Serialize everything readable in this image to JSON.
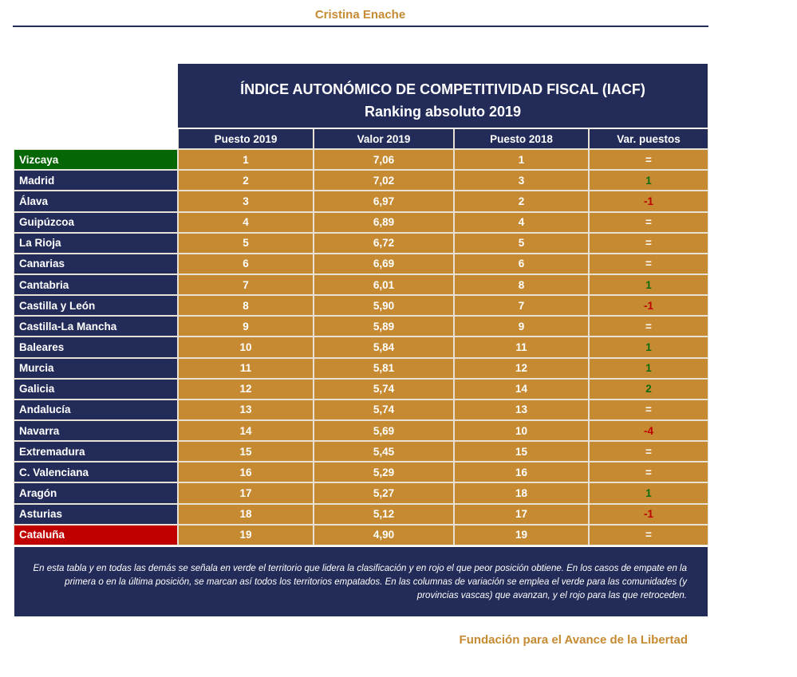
{
  "author": "Cristina Enache",
  "title": "ÍNDICE AUTONÓMICO DE COMPETITIVIDAD FISCAL (IACF)",
  "subtitle": "Ranking absoluto 2019",
  "columns": [
    "Puesto 2019",
    "Valor 2019",
    "Puesto 2018",
    "Var. puestos"
  ],
  "colors": {
    "leader": "#046604",
    "last": "#c00000",
    "navy": "#232c58",
    "gold": "#c68a32"
  },
  "rows": [
    [
      "Vizcaya",
      "1",
      "7,06",
      "1",
      "="
    ],
    [
      "Madrid",
      "2",
      "7,02",
      "3",
      "1"
    ],
    [
      "Álava",
      "3",
      "6,97",
      "2",
      "-1"
    ],
    [
      "Guipúzcoa",
      "4",
      "6,89",
      "4",
      "="
    ],
    [
      "La Rioja",
      "5",
      "6,72",
      "5",
      "="
    ],
    [
      "Canarias",
      "6",
      "6,69",
      "6",
      "="
    ],
    [
      "Cantabria",
      "7",
      "6,01",
      "8",
      "1"
    ],
    [
      "Castilla y León",
      "8",
      "5,90",
      "7",
      "-1"
    ],
    [
      "Castilla-La Mancha",
      "9",
      "5,89",
      "9",
      "="
    ],
    [
      "Baleares",
      "10",
      "5,84",
      "11",
      "1"
    ],
    [
      "Murcia",
      "11",
      "5,81",
      "12",
      "1"
    ],
    [
      "Galicia",
      "12",
      "5,74",
      "14",
      "2"
    ],
    [
      "Andalucía",
      "13",
      "5,74",
      "13",
      "="
    ],
    [
      "Navarra",
      "14",
      "5,69",
      "10",
      "-4"
    ],
    [
      "Extremadura",
      "15",
      "5,45",
      "15",
      "="
    ],
    [
      "C. Valenciana",
      "16",
      "5,29",
      "16",
      "="
    ],
    [
      "Aragón",
      "17",
      "5,27",
      "18",
      "1"
    ],
    [
      "Asturias",
      "18",
      "5,12",
      "17",
      "-1"
    ],
    [
      "Cataluña",
      "19",
      "4,90",
      "19",
      "="
    ]
  ],
  "note": "En esta tabla y en todas las demás se señala en verde el territorio que lidera la clasificación y en rojo el que peor posición obtiene. En los casos de empate en la primera o en la última posición, se marcan así todos los territorios empatados. En las columnas de variación se emplea el verde para las comunidades (y provincias vascas) que avanzan, y el rojo para las que retroceden.",
  "footer": "Fundación para el Avance de la Libertad"
}
